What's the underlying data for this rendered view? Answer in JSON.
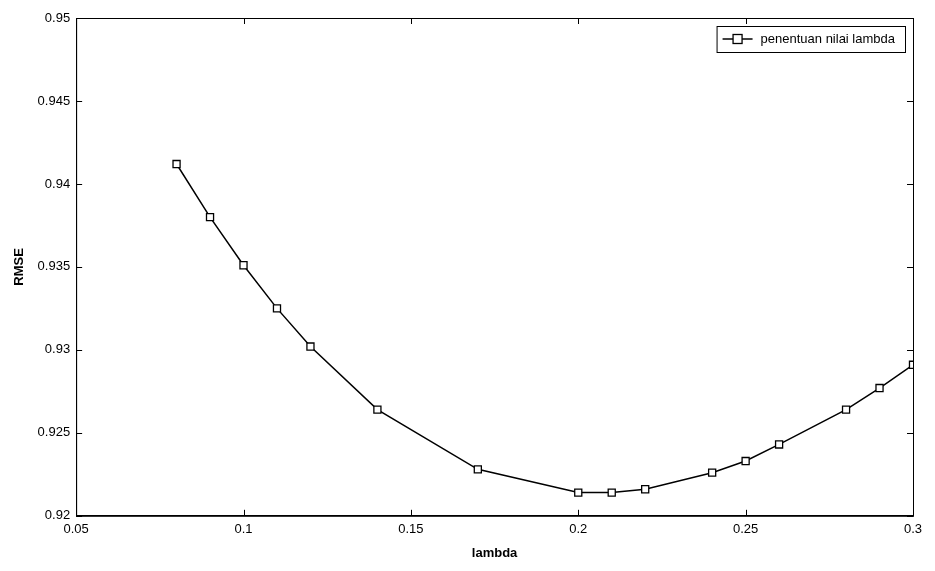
{
  "chart_data": {
    "type": "line",
    "x_label": "lambda",
    "y_label": "RMSE",
    "series": [
      {
        "name": "penentuan nilai lambda",
        "color": "#000000",
        "marker": "square",
        "line_style": "solid",
        "x": [
          0.08,
          0.09,
          0.1,
          0.11,
          0.12,
          0.14,
          0.17,
          0.2,
          0.21,
          0.22,
          0.24,
          0.25,
          0.26,
          0.28,
          0.29,
          0.3
        ],
        "values": [
          0.9412,
          0.938,
          0.9351,
          0.9325,
          0.9302,
          0.9264,
          0.9228,
          0.9214,
          0.9214,
          0.9216,
          0.9226,
          0.9233,
          0.9243,
          0.9264,
          0.9277,
          0.9291
        ]
      }
    ],
    "xlim": [
      0.05,
      0.3
    ],
    "xticks": [
      0.05,
      0.1,
      0.15,
      0.2,
      0.25,
      0.3
    ],
    "ylim": [
      0.92,
      0.95
    ],
    "yticks": [
      0.92,
      0.925,
      0.93,
      0.935,
      0.94,
      0.945,
      0.95
    ],
    "grid": false,
    "legend": "northeast"
  }
}
